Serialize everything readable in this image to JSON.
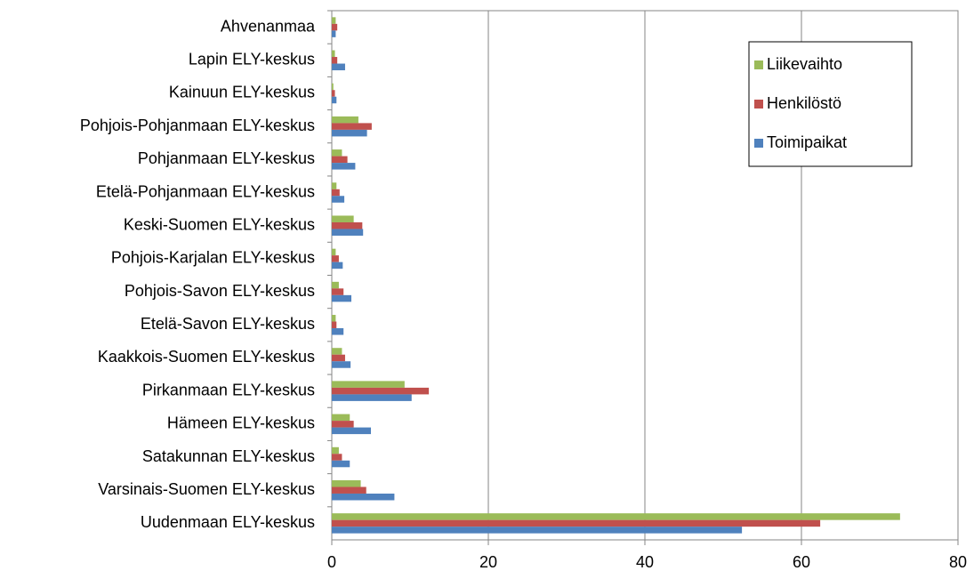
{
  "chart_data": {
    "type": "barh",
    "categories": [
      "Ahvenanmaa",
      "Lapin ELY-keskus",
      "Kainuun ELY-keskus",
      "Pohjois-Pohjanmaan ELY-keskus",
      "Pohjanmaan ELY-keskus",
      "Etelä-Pohjanmaan ELY-keskus",
      "Keski-Suomen ELY-keskus",
      "Pohjois-Karjalan ELY-keskus",
      "Pohjois-Savon ELY-keskus",
      "Etelä-Savon ELY-keskus",
      "Kaakkois-Suomen ELY-keskus",
      "Pirkanmaan ELY-keskus",
      "Hämeen ELY-keskus",
      "Satakunnan ELY-keskus",
      "Varsinais-Suomen ELY-keskus",
      "Uudenmaan ELY-keskus"
    ],
    "series": [
      {
        "name": "Liikevaihto",
        "color": "#9bbb59",
        "values": [
          0.5,
          0.4,
          0.2,
          3.4,
          1.3,
          0.6,
          2.8,
          0.5,
          0.9,
          0.5,
          1.3,
          9.3,
          2.3,
          0.9,
          3.7,
          72.6
        ]
      },
      {
        "name": "Henkilöstö",
        "color": "#c0504d",
        "values": [
          0.7,
          0.7,
          0.4,
          5.1,
          2.0,
          1.0,
          3.9,
          0.9,
          1.5,
          0.6,
          1.7,
          12.4,
          2.8,
          1.3,
          4.4,
          62.4
        ]
      },
      {
        "name": "Toimipaikat",
        "color": "#4f81bd",
        "values": [
          0.5,
          1.7,
          0.6,
          4.5,
          3.0,
          1.6,
          4.0,
          1.4,
          2.5,
          1.5,
          2.4,
          10.2,
          5.0,
          2.3,
          8.0,
          52.4
        ]
      }
    ],
    "xlim": [
      0,
      80
    ],
    "xticks": [
      0,
      20,
      40,
      60,
      80
    ],
    "grid": true,
    "legend": "upper right"
  }
}
